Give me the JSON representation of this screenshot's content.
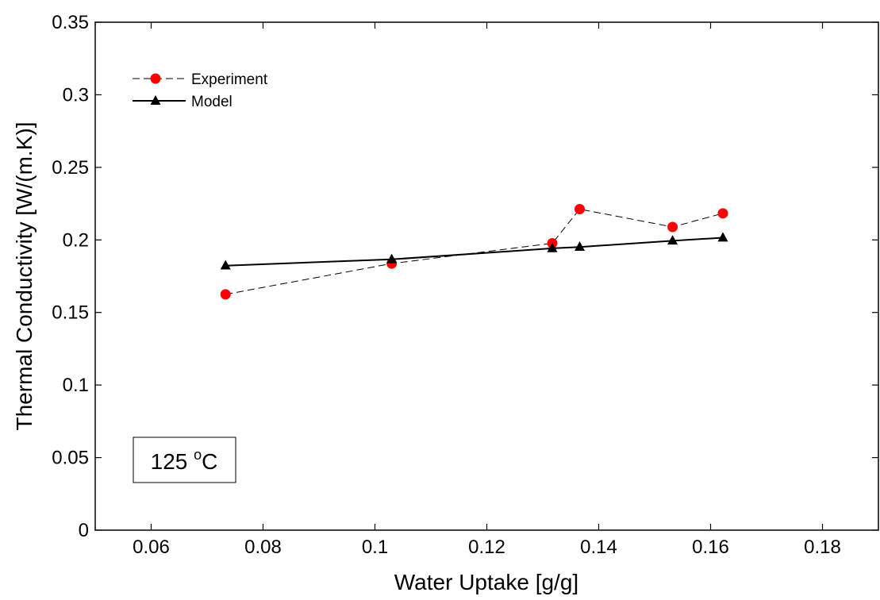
{
  "chart_data": {
    "type": "line",
    "title": "",
    "xlabel": "Water Uptake [g/g]",
    "ylabel": "Thermal Conductivity [W/(m.K)]",
    "xlim": [
      0.05,
      0.19
    ],
    "ylim": [
      0,
      0.35
    ],
    "x_ticks": [
      0.06,
      0.08,
      0.1,
      0.12,
      0.14,
      0.16,
      0.18
    ],
    "x_tick_labels": [
      "0.06",
      "0.08",
      "0.1",
      "0.12",
      "0.14",
      "0.16",
      "0.18"
    ],
    "y_ticks": [
      0,
      0.05,
      0.1,
      0.15,
      0.2,
      0.25,
      0.3,
      0.35
    ],
    "y_tick_labels": [
      "0",
      "0.05",
      "0.1",
      "0.15",
      "0.2",
      "0.25",
      "0.3",
      "0.35"
    ],
    "grid": false,
    "legend_position": "top-left",
    "series": [
      {
        "name": "Experiment",
        "marker": "circle",
        "line_style": "dashed",
        "color": "#ff0000",
        "line_color": "#000000",
        "points": [
          {
            "x": 0.0733,
            "y": 0.1625
          },
          {
            "x": 0.103,
            "y": 0.1837
          },
          {
            "x": 0.1317,
            "y": 0.1977
          },
          {
            "x": 0.1366,
            "y": 0.2212
          },
          {
            "x": 0.1532,
            "y": 0.2089
          },
          {
            "x": 0.1622,
            "y": 0.2183
          }
        ]
      },
      {
        "name": "Model",
        "marker": "triangle",
        "line_style": "solid",
        "color": "#000000",
        "line_color": "#000000",
        "points": [
          {
            "x": 0.0733,
            "y": 0.1823
          },
          {
            "x": 0.103,
            "y": 0.1866
          },
          {
            "x": 0.1317,
            "y": 0.1942
          },
          {
            "x": 0.1366,
            "y": 0.1951
          },
          {
            "x": 0.1532,
            "y": 0.1994
          },
          {
            "x": 0.1622,
            "y": 0.2015
          }
        ]
      }
    ],
    "annotations": [
      {
        "text_main": "125 ",
        "text_sup": "o",
        "text_unit": "C"
      }
    ]
  }
}
